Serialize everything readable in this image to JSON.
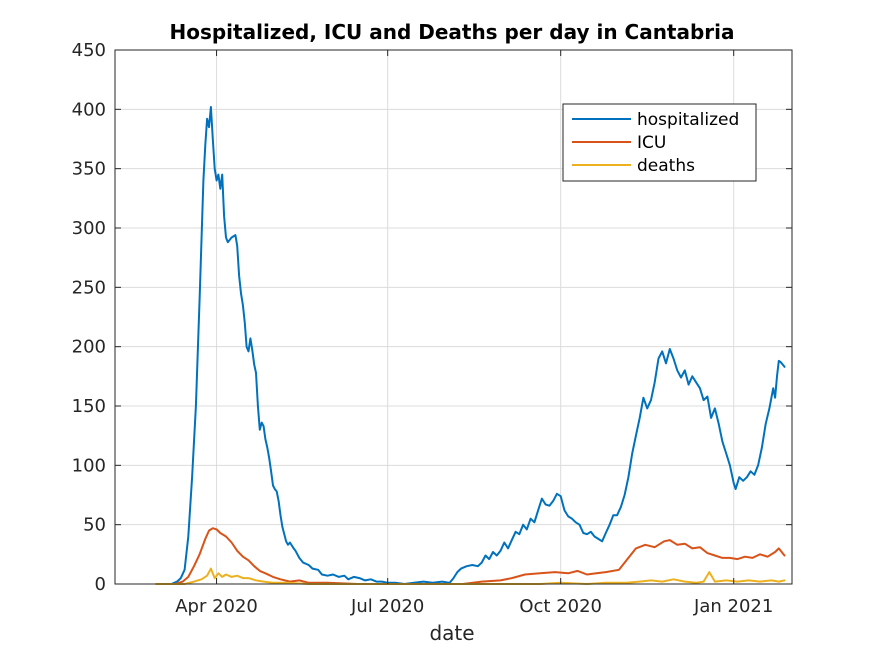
{
  "chart_data": {
    "type": "line",
    "title": "Hospitalized, ICU and Deaths per day in Cantabria",
    "xlabel": "date",
    "ylabel": "",
    "x_type": "date",
    "xlim": [
      "2020-02-07",
      "2021-02-01"
    ],
    "ylim": [
      0,
      450
    ],
    "yticks": [
      0,
      50,
      100,
      150,
      200,
      250,
      300,
      350,
      400,
      450
    ],
    "xticks": [
      {
        "date": "2020-04-01",
        "label": "Apr 2020"
      },
      {
        "date": "2020-07-01",
        "label": "Jul 2020"
      },
      {
        "date": "2020-10-01",
        "label": "Oct 2020"
      },
      {
        "date": "2021-01-01",
        "label": "Jan 2021"
      }
    ],
    "grid": true,
    "legend_position": "top-right",
    "series": [
      {
        "name": "hospitalized",
        "color": "#0072bd",
        "points": [
          [
            "2020-02-29",
            0
          ],
          [
            "2020-03-08",
            0
          ],
          [
            "2020-03-11",
            2
          ],
          [
            "2020-03-13",
            5
          ],
          [
            "2020-03-15",
            12
          ],
          [
            "2020-03-17",
            40
          ],
          [
            "2020-03-19",
            90
          ],
          [
            "2020-03-21",
            150
          ],
          [
            "2020-03-23",
            240
          ],
          [
            "2020-03-25",
            340
          ],
          [
            "2020-03-26",
            370
          ],
          [
            "2020-03-27",
            392
          ],
          [
            "2020-03-28",
            385
          ],
          [
            "2020-03-29",
            402
          ],
          [
            "2020-03-30",
            375
          ],
          [
            "2020-03-31",
            350
          ],
          [
            "2020-04-01",
            340
          ],
          [
            "2020-04-02",
            345
          ],
          [
            "2020-04-03",
            333
          ],
          [
            "2020-04-04",
            345
          ],
          [
            "2020-04-05",
            310
          ],
          [
            "2020-04-06",
            292
          ],
          [
            "2020-04-07",
            288
          ],
          [
            "2020-04-09",
            292
          ],
          [
            "2020-04-11",
            294
          ],
          [
            "2020-04-12",
            285
          ],
          [
            "2020-04-13",
            260
          ],
          [
            "2020-04-14",
            245
          ],
          [
            "2020-04-15",
            235
          ],
          [
            "2020-04-16",
            220
          ],
          [
            "2020-04-17",
            200
          ],
          [
            "2020-04-18",
            196
          ],
          [
            "2020-04-19",
            207
          ],
          [
            "2020-04-20",
            197
          ],
          [
            "2020-04-21",
            185
          ],
          [
            "2020-04-22",
            178
          ],
          [
            "2020-04-23",
            150
          ],
          [
            "2020-04-24",
            130
          ],
          [
            "2020-04-25",
            136
          ],
          [
            "2020-04-26",
            133
          ],
          [
            "2020-04-27",
            122
          ],
          [
            "2020-04-28",
            115
          ],
          [
            "2020-04-29",
            106
          ],
          [
            "2020-04-30",
            95
          ],
          [
            "2020-05-01",
            83
          ],
          [
            "2020-05-02",
            80
          ],
          [
            "2020-05-03",
            78
          ],
          [
            "2020-05-04",
            70
          ],
          [
            "2020-05-05",
            58
          ],
          [
            "2020-05-06",
            48
          ],
          [
            "2020-05-07",
            42
          ],
          [
            "2020-05-08",
            36
          ],
          [
            "2020-05-09",
            33
          ],
          [
            "2020-05-10",
            35
          ],
          [
            "2020-05-12",
            30
          ],
          [
            "2020-05-13",
            28
          ],
          [
            "2020-05-15",
            22
          ],
          [
            "2020-05-17",
            18
          ],
          [
            "2020-05-20",
            16
          ],
          [
            "2020-05-22",
            13
          ],
          [
            "2020-05-25",
            12
          ],
          [
            "2020-05-27",
            8
          ],
          [
            "2020-05-30",
            7
          ],
          [
            "2020-06-02",
            8
          ],
          [
            "2020-06-05",
            6
          ],
          [
            "2020-06-08",
            7
          ],
          [
            "2020-06-10",
            4
          ],
          [
            "2020-06-13",
            6
          ],
          [
            "2020-06-16",
            5
          ],
          [
            "2020-06-19",
            3
          ],
          [
            "2020-06-22",
            4
          ],
          [
            "2020-06-25",
            2
          ],
          [
            "2020-06-28",
            2
          ],
          [
            "2020-07-01",
            1
          ],
          [
            "2020-07-05",
            1
          ],
          [
            "2020-07-10",
            0
          ],
          [
            "2020-07-15",
            1
          ],
          [
            "2020-07-20",
            2
          ],
          [
            "2020-07-25",
            1
          ],
          [
            "2020-07-30",
            2
          ],
          [
            "2020-08-03",
            1
          ],
          [
            "2020-08-05",
            5
          ],
          [
            "2020-08-07",
            10
          ],
          [
            "2020-08-09",
            13
          ],
          [
            "2020-08-12",
            15
          ],
          [
            "2020-08-15",
            16
          ],
          [
            "2020-08-18",
            15
          ],
          [
            "2020-08-20",
            18
          ],
          [
            "2020-08-22",
            24
          ],
          [
            "2020-08-24",
            21
          ],
          [
            "2020-08-26",
            27
          ],
          [
            "2020-08-28",
            24
          ],
          [
            "2020-08-30",
            28
          ],
          [
            "2020-09-01",
            35
          ],
          [
            "2020-09-03",
            30
          ],
          [
            "2020-09-05",
            37
          ],
          [
            "2020-09-07",
            44
          ],
          [
            "2020-09-09",
            42
          ],
          [
            "2020-09-11",
            50
          ],
          [
            "2020-09-13",
            46
          ],
          [
            "2020-09-15",
            55
          ],
          [
            "2020-09-17",
            52
          ],
          [
            "2020-09-19",
            62
          ],
          [
            "2020-09-21",
            72
          ],
          [
            "2020-09-23",
            67
          ],
          [
            "2020-09-25",
            66
          ],
          [
            "2020-09-27",
            70
          ],
          [
            "2020-09-29",
            76
          ],
          [
            "2020-10-01",
            74
          ],
          [
            "2020-10-03",
            62
          ],
          [
            "2020-10-05",
            57
          ],
          [
            "2020-10-07",
            55
          ],
          [
            "2020-10-09",
            52
          ],
          [
            "2020-10-11",
            50
          ],
          [
            "2020-10-13",
            43
          ],
          [
            "2020-10-15",
            42
          ],
          [
            "2020-10-17",
            44
          ],
          [
            "2020-10-19",
            40
          ],
          [
            "2020-10-21",
            38
          ],
          [
            "2020-10-23",
            36
          ],
          [
            "2020-10-25",
            43
          ],
          [
            "2020-10-27",
            50
          ],
          [
            "2020-10-29",
            58
          ],
          [
            "2020-10-31",
            58
          ],
          [
            "2020-11-02",
            65
          ],
          [
            "2020-11-04",
            75
          ],
          [
            "2020-11-06",
            90
          ],
          [
            "2020-11-08",
            110
          ],
          [
            "2020-11-10",
            125
          ],
          [
            "2020-11-12",
            140
          ],
          [
            "2020-11-14",
            157
          ],
          [
            "2020-11-16",
            148
          ],
          [
            "2020-11-18",
            155
          ],
          [
            "2020-11-20",
            170
          ],
          [
            "2020-11-22",
            190
          ],
          [
            "2020-11-24",
            196
          ],
          [
            "2020-11-26",
            186
          ],
          [
            "2020-11-28",
            198
          ],
          [
            "2020-11-30",
            190
          ],
          [
            "2020-12-02",
            180
          ],
          [
            "2020-12-04",
            174
          ],
          [
            "2020-12-06",
            180
          ],
          [
            "2020-12-08",
            168
          ],
          [
            "2020-12-10",
            175
          ],
          [
            "2020-12-12",
            170
          ],
          [
            "2020-12-14",
            165
          ],
          [
            "2020-12-16",
            155
          ],
          [
            "2020-12-18",
            158
          ],
          [
            "2020-12-20",
            140
          ],
          [
            "2020-12-22",
            148
          ],
          [
            "2020-12-24",
            135
          ],
          [
            "2020-12-26",
            120
          ],
          [
            "2020-12-28",
            110
          ],
          [
            "2020-12-30",
            100
          ],
          [
            "2021-01-01",
            85
          ],
          [
            "2021-01-02",
            80
          ],
          [
            "2021-01-04",
            90
          ],
          [
            "2021-01-06",
            87
          ],
          [
            "2021-01-08",
            90
          ],
          [
            "2021-01-10",
            95
          ],
          [
            "2021-01-12",
            92
          ],
          [
            "2021-01-14",
            100
          ],
          [
            "2021-01-16",
            115
          ],
          [
            "2021-01-18",
            135
          ],
          [
            "2021-01-20",
            148
          ],
          [
            "2021-01-22",
            165
          ],
          [
            "2021-01-23",
            157
          ],
          [
            "2021-01-24",
            175
          ],
          [
            "2021-01-25",
            188
          ],
          [
            "2021-01-26",
            187
          ],
          [
            "2021-01-28",
            183
          ]
        ]
      },
      {
        "name": "ICU",
        "color": "#d95319",
        "points": [
          [
            "2020-02-29",
            0
          ],
          [
            "2020-03-10",
            0
          ],
          [
            "2020-03-14",
            2
          ],
          [
            "2020-03-17",
            6
          ],
          [
            "2020-03-20",
            15
          ],
          [
            "2020-03-23",
            25
          ],
          [
            "2020-03-26",
            38
          ],
          [
            "2020-03-28",
            45
          ],
          [
            "2020-03-30",
            47
          ],
          [
            "2020-04-01",
            46
          ],
          [
            "2020-04-03",
            43
          ],
          [
            "2020-04-06",
            40
          ],
          [
            "2020-04-09",
            35
          ],
          [
            "2020-04-12",
            28
          ],
          [
            "2020-04-15",
            23
          ],
          [
            "2020-04-18",
            20
          ],
          [
            "2020-04-21",
            15
          ],
          [
            "2020-04-24",
            11
          ],
          [
            "2020-04-27",
            9
          ],
          [
            "2020-05-01",
            6
          ],
          [
            "2020-05-05",
            4
          ],
          [
            "2020-05-10",
            2
          ],
          [
            "2020-05-15",
            3
          ],
          [
            "2020-05-20",
            1
          ],
          [
            "2020-05-30",
            1
          ],
          [
            "2020-06-15",
            0
          ],
          [
            "2020-07-15",
            0
          ],
          [
            "2020-08-10",
            0
          ],
          [
            "2020-08-20",
            2
          ],
          [
            "2020-08-30",
            3
          ],
          [
            "2020-09-05",
            5
          ],
          [
            "2020-09-12",
            8
          ],
          [
            "2020-09-20",
            9
          ],
          [
            "2020-09-28",
            10
          ],
          [
            "2020-10-05",
            9
          ],
          [
            "2020-10-10",
            11
          ],
          [
            "2020-10-15",
            8
          ],
          [
            "2020-10-20",
            9
          ],
          [
            "2020-10-25",
            10
          ],
          [
            "2020-11-01",
            12
          ],
          [
            "2020-11-05",
            20
          ],
          [
            "2020-11-10",
            30
          ],
          [
            "2020-11-15",
            33
          ],
          [
            "2020-11-20",
            31
          ],
          [
            "2020-11-25",
            36
          ],
          [
            "2020-11-28",
            37
          ],
          [
            "2020-12-02",
            33
          ],
          [
            "2020-12-06",
            34
          ],
          [
            "2020-12-10",
            30
          ],
          [
            "2020-12-14",
            31
          ],
          [
            "2020-12-18",
            26
          ],
          [
            "2020-12-22",
            24
          ],
          [
            "2020-12-26",
            22
          ],
          [
            "2020-12-30",
            22
          ],
          [
            "2021-01-03",
            21
          ],
          [
            "2021-01-07",
            23
          ],
          [
            "2021-01-11",
            22
          ],
          [
            "2021-01-15",
            25
          ],
          [
            "2021-01-19",
            23
          ],
          [
            "2021-01-23",
            27
          ],
          [
            "2021-01-25",
            30
          ],
          [
            "2021-01-28",
            24
          ]
        ]
      },
      {
        "name": "deaths",
        "color": "#edb120",
        "points": [
          [
            "2020-02-29",
            0
          ],
          [
            "2020-03-15",
            0
          ],
          [
            "2020-03-20",
            2
          ],
          [
            "2020-03-24",
            4
          ],
          [
            "2020-03-27",
            7
          ],
          [
            "2020-03-29",
            13
          ],
          [
            "2020-03-31",
            5
          ],
          [
            "2020-04-02",
            9
          ],
          [
            "2020-04-04",
            6
          ],
          [
            "2020-04-06",
            8
          ],
          [
            "2020-04-09",
            6
          ],
          [
            "2020-04-12",
            7
          ],
          [
            "2020-04-15",
            5
          ],
          [
            "2020-04-18",
            5
          ],
          [
            "2020-04-22",
            3
          ],
          [
            "2020-04-26",
            2
          ],
          [
            "2020-05-01",
            1
          ],
          [
            "2020-05-08",
            1
          ],
          [
            "2020-05-20",
            0
          ],
          [
            "2020-09-20",
            0
          ],
          [
            "2020-10-01",
            1
          ],
          [
            "2020-10-15",
            0
          ],
          [
            "2020-10-25",
            1
          ],
          [
            "2020-11-05",
            1
          ],
          [
            "2020-11-12",
            2
          ],
          [
            "2020-11-18",
            3
          ],
          [
            "2020-11-24",
            2
          ],
          [
            "2020-11-30",
            4
          ],
          [
            "2020-12-06",
            2
          ],
          [
            "2020-12-12",
            1
          ],
          [
            "2020-12-16",
            2
          ],
          [
            "2020-12-19",
            10
          ],
          [
            "2020-12-22",
            2
          ],
          [
            "2020-12-28",
            3
          ],
          [
            "2021-01-03",
            2
          ],
          [
            "2021-01-09",
            3
          ],
          [
            "2021-01-15",
            2
          ],
          [
            "2021-01-21",
            3
          ],
          [
            "2021-01-25",
            2
          ],
          [
            "2021-01-28",
            3
          ]
        ]
      }
    ]
  }
}
